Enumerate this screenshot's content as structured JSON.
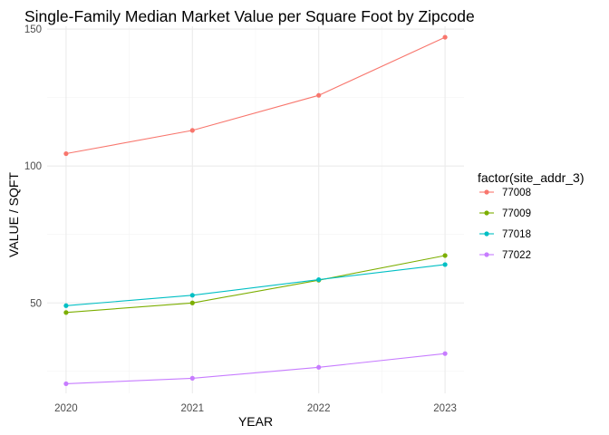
{
  "chart_data": {
    "type": "line",
    "title": "Single-Family Median Market Value per Square Foot by Zipcode",
    "xlabel": "YEAR",
    "ylabel": "VALUE / SQFT",
    "x": [
      2020,
      2021,
      2022,
      2023
    ],
    "x_ticks": [
      "2020",
      "2021",
      "2022",
      "2023"
    ],
    "y_ticks": [
      "50",
      "100",
      "150"
    ],
    "xlim": [
      2019.85,
      2023.15
    ],
    "ylim": [
      17,
      151
    ],
    "grid": true,
    "legend": {
      "title": "factor(site_addr_3)",
      "placement": "right"
    },
    "series": [
      {
        "name": "77008",
        "color": "#F8766D",
        "values": [
          104.5,
          113,
          125.8,
          147
        ]
      },
      {
        "name": "77009",
        "color": "#7CAE00",
        "values": [
          46.5,
          50,
          58.3,
          67.3
        ]
      },
      {
        "name": "77018",
        "color": "#00BFC4",
        "values": [
          49,
          52.8,
          58.5,
          64
        ]
      },
      {
        "name": "77022",
        "color": "#C77CFF",
        "values": [
          20.5,
          22.5,
          26.5,
          31.5
        ]
      }
    ]
  }
}
